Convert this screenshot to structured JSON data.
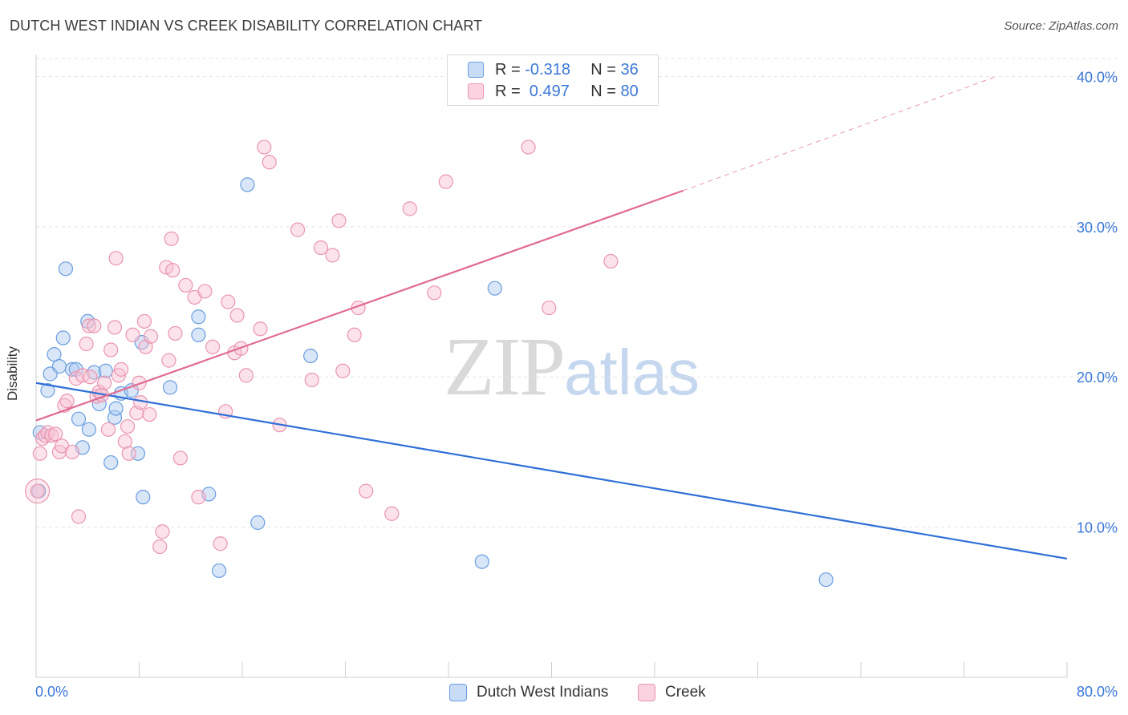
{
  "title": "DUTCH WEST INDIAN VS CREEK DISABILITY CORRELATION CHART",
  "source": "Source: ZipAtlas.com",
  "legend": {
    "rows": [
      {
        "r_label": "R =",
        "r_value": "-0.318",
        "n_label": "N =",
        "n_value": "36",
        "color": "#a9c8f0",
        "border": "#6a9ee0"
      },
      {
        "r_label": "R =",
        "r_value": " 0.497",
        "n_label": "N =",
        "n_value": "80",
        "color": "#f8c0d2",
        "border": "#e995b0"
      }
    ]
  },
  "bottom_legend": {
    "series1": "Dutch West Indians",
    "series2": "Creek"
  },
  "watermark": {
    "zip": "ZIP",
    "atlas": "atlas"
  },
  "chart_data": {
    "type": "scatter",
    "title": "DUTCH WEST INDIAN VS CREEK DISABILITY CORRELATION CHART",
    "ylabel": "Disability",
    "xlabel": "",
    "xlim": [
      0,
      80
    ],
    "ylim": [
      0,
      42
    ],
    "x_tick_labels": [
      "0.0%",
      "80.0%"
    ],
    "y_ticks": [
      10,
      20,
      30,
      40
    ],
    "y_tick_labels": [
      "10.0%",
      "20.0%",
      "30.0%",
      "40.0%"
    ],
    "grid": true,
    "series": [
      {
        "name": "Dutch West Indians",
        "color": "#6a9ee0",
        "fill": "#a9c8f0",
        "trend_color": "#2f6fd6",
        "trend": {
          "x0": 0,
          "y0": 19.6,
          "x1": 80,
          "y1": 7.9
        },
        "points": [
          [
            0.2,
            12.4
          ],
          [
            0.3,
            16.3
          ],
          [
            0.9,
            19.1
          ],
          [
            1.1,
            20.2
          ],
          [
            1.4,
            21.5
          ],
          [
            1.8,
            20.7
          ],
          [
            2.1,
            22.6
          ],
          [
            2.3,
            27.2
          ],
          [
            2.8,
            20.5
          ],
          [
            3.1,
            20.5
          ],
          [
            3.3,
            17.2
          ],
          [
            3.6,
            15.3
          ],
          [
            4.1,
            16.5
          ],
          [
            4.0,
            23.7
          ],
          [
            4.5,
            20.3
          ],
          [
            4.9,
            18.2
          ],
          [
            5.4,
            20.4
          ],
          [
            5.8,
            14.3
          ],
          [
            6.1,
            17.3
          ],
          [
            6.2,
            17.9
          ],
          [
            6.6,
            18.9
          ],
          [
            7.4,
            19.1
          ],
          [
            7.9,
            14.9
          ],
          [
            8.3,
            12.0
          ],
          [
            8.2,
            22.3
          ],
          [
            10.4,
            19.3
          ],
          [
            12.6,
            24.0
          ],
          [
            12.6,
            22.8
          ],
          [
            13.4,
            12.2
          ],
          [
            14.2,
            7.1
          ],
          [
            16.4,
            32.8
          ],
          [
            17.2,
            10.3
          ],
          [
            21.3,
            21.4
          ],
          [
            35.6,
            25.9
          ],
          [
            34.6,
            7.7
          ],
          [
            61.3,
            6.5
          ]
        ]
      },
      {
        "name": "Creek",
        "color": "#e995b0",
        "fill": "#f8c0d2",
        "trend_color": "#e06b92",
        "trend": {
          "x0": 0,
          "y0": 17.1,
          "x1": 50.2,
          "y1": 32.4
        },
        "trend_dashed": {
          "x0": 50.2,
          "y0": 32.4,
          "x1": 74.5,
          "y1": 40.0
        },
        "points": [
          [
            0.1,
            12.4
          ],
          [
            0.3,
            14.9
          ],
          [
            0.5,
            15.9
          ],
          [
            0.7,
            16.1
          ],
          [
            0.9,
            16.3
          ],
          [
            1.2,
            16.1
          ],
          [
            1.5,
            16.2
          ],
          [
            1.8,
            15.0
          ],
          [
            2.0,
            15.4
          ],
          [
            2.2,
            18.1
          ],
          [
            2.4,
            18.4
          ],
          [
            2.8,
            15.0
          ],
          [
            3.1,
            19.9
          ],
          [
            3.3,
            10.7
          ],
          [
            3.6,
            20.1
          ],
          [
            3.9,
            22.2
          ],
          [
            4.1,
            23.4
          ],
          [
            4.2,
            20.0
          ],
          [
            4.5,
            23.4
          ],
          [
            4.7,
            18.7
          ],
          [
            4.9,
            19.0
          ],
          [
            5.1,
            18.8
          ],
          [
            5.3,
            19.6
          ],
          [
            5.6,
            16.5
          ],
          [
            5.8,
            21.8
          ],
          [
            6.1,
            23.3
          ],
          [
            6.2,
            27.9
          ],
          [
            6.4,
            20.1
          ],
          [
            6.6,
            20.5
          ],
          [
            6.9,
            15.7
          ],
          [
            7.1,
            16.7
          ],
          [
            7.2,
            14.9
          ],
          [
            7.5,
            22.8
          ],
          [
            7.8,
            17.6
          ],
          [
            8.0,
            19.6
          ],
          [
            8.1,
            18.3
          ],
          [
            8.4,
            23.7
          ],
          [
            8.5,
            22.0
          ],
          [
            8.8,
            17.5
          ],
          [
            8.9,
            22.7
          ],
          [
            9.6,
            8.7
          ],
          [
            9.8,
            9.7
          ],
          [
            10.1,
            27.3
          ],
          [
            10.3,
            21.1
          ],
          [
            10.5,
            29.2
          ],
          [
            10.6,
            27.1
          ],
          [
            10.8,
            22.9
          ],
          [
            11.2,
            14.6
          ],
          [
            11.6,
            26.1
          ],
          [
            12.3,
            25.3
          ],
          [
            12.6,
            12.0
          ],
          [
            13.1,
            25.7
          ],
          [
            13.7,
            22.0
          ],
          [
            14.3,
            8.9
          ],
          [
            14.7,
            17.7
          ],
          [
            14.9,
            25.0
          ],
          [
            15.4,
            21.6
          ],
          [
            15.6,
            24.1
          ],
          [
            15.9,
            21.9
          ],
          [
            16.3,
            20.1
          ],
          [
            17.4,
            23.2
          ],
          [
            17.7,
            35.3
          ],
          [
            18.1,
            34.3
          ],
          [
            18.9,
            16.8
          ],
          [
            20.3,
            29.8
          ],
          [
            21.4,
            19.8
          ],
          [
            22.1,
            28.6
          ],
          [
            23.0,
            28.1
          ],
          [
            23.5,
            30.4
          ],
          [
            23.8,
            20.4
          ],
          [
            24.7,
            22.8
          ],
          [
            25.0,
            24.6
          ],
          [
            25.6,
            12.4
          ],
          [
            27.6,
            10.9
          ],
          [
            29.0,
            31.2
          ],
          [
            30.9,
            25.6
          ],
          [
            31.8,
            33.0
          ],
          [
            38.2,
            35.3
          ],
          [
            39.8,
            24.6
          ],
          [
            44.6,
            27.7
          ]
        ]
      }
    ]
  }
}
